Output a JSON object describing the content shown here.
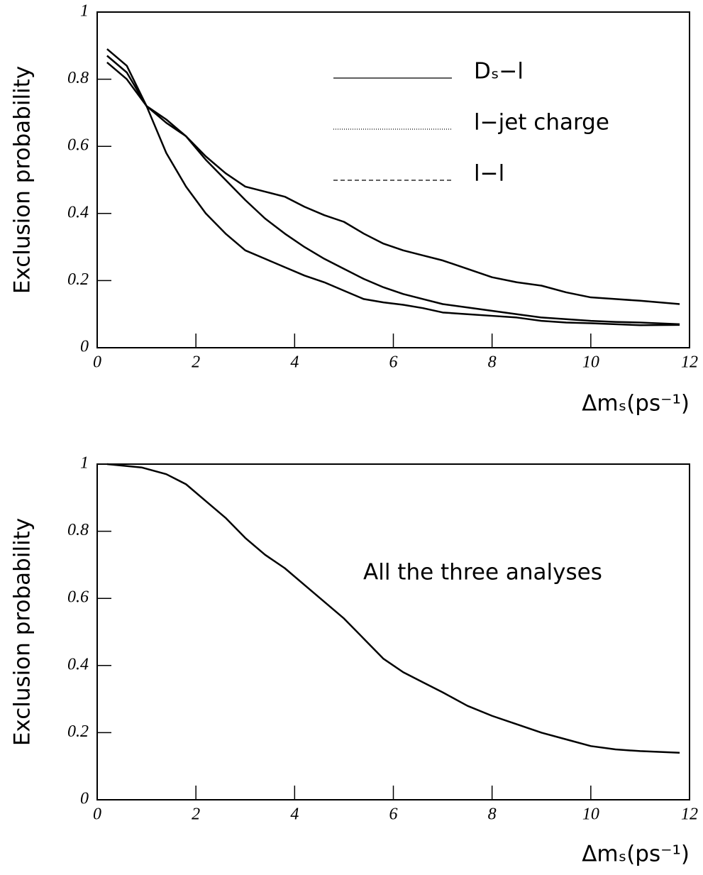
{
  "chart_data": [
    {
      "type": "line",
      "y_label": "Exclusion probability",
      "x_label": "Δmₛ(ps⁻¹)",
      "xlim": [
        0,
        12
      ],
      "ylim": [
        0,
        1
      ],
      "xticks": [
        0,
        2,
        4,
        6,
        8,
        10,
        12
      ],
      "yticks": [
        0,
        0.2,
        0.4,
        0.6,
        0.8,
        1
      ],
      "x": [
        0.2,
        0.6,
        1,
        1.4,
        1.8,
        2.2,
        2.6,
        3,
        3.4,
        3.8,
        4.2,
        4.6,
        5,
        5.4,
        5.8,
        6.2,
        6.6,
        7,
        7.5,
        8,
        8.5,
        9,
        9.5,
        10,
        10.5,
        11,
        11.8
      ],
      "series": [
        {
          "name": "Dₛ−l",
          "color": "#000000",
          "dash": "none",
          "values": [
            0.87,
            0.82,
            0.72,
            0.68,
            0.63,
            0.57,
            0.52,
            0.48,
            0.465,
            0.45,
            0.42,
            0.395,
            0.375,
            0.34,
            0.31,
            0.29,
            0.275,
            0.26,
            0.235,
            0.21,
            0.195,
            0.185,
            0.165,
            0.15,
            0.145,
            0.14,
            0.13
          ]
        },
        {
          "name": "l−jet charge",
          "color": "#000000",
          "dash": "1 2",
          "values": [
            0.85,
            0.8,
            0.72,
            0.67,
            0.63,
            0.56,
            0.5,
            0.44,
            0.385,
            0.34,
            0.3,
            0.265,
            0.235,
            0.205,
            0.18,
            0.16,
            0.145,
            0.13,
            0.12,
            0.11,
            0.1,
            0.09,
            0.085,
            0.08,
            0.077,
            0.075,
            0.07
          ]
        },
        {
          "name": "l−l",
          "color": "#000000",
          "dash": "6 4",
          "values": [
            0.89,
            0.84,
            0.72,
            0.58,
            0.48,
            0.4,
            0.34,
            0.29,
            0.265,
            0.24,
            0.215,
            0.195,
            0.17,
            0.145,
            0.135,
            0.128,
            0.118,
            0.105,
            0.1,
            0.095,
            0.09,
            0.08,
            0.075,
            0.073,
            0.07,
            0.067,
            0.068
          ]
        }
      ]
    },
    {
      "type": "line",
      "y_label": "Exclusion probability",
      "x_label": "Δmₛ(ps⁻¹)",
      "annotation": "All the three analyses",
      "xlim": [
        0,
        12
      ],
      "ylim": [
        0,
        1
      ],
      "xticks": [
        0,
        2,
        4,
        6,
        8,
        10,
        12
      ],
      "yticks": [
        0,
        0.2,
        0.4,
        0.6,
        0.8,
        1
      ],
      "x": [
        0.2,
        0.9,
        1.4,
        1.8,
        2.2,
        2.6,
        3,
        3.4,
        3.8,
        4.2,
        4.6,
        5,
        5.4,
        5.8,
        6.2,
        6.6,
        7,
        7.5,
        8,
        8.5,
        9,
        9.5,
        10,
        10.5,
        11,
        11.8
      ],
      "series": [
        {
          "color": "#000000",
          "values": [
            1,
            0.99,
            0.97,
            0.94,
            0.89,
            0.84,
            0.78,
            0.73,
            0.69,
            0.64,
            0.59,
            0.54,
            0.48,
            0.42,
            0.38,
            0.35,
            0.32,
            0.28,
            0.25,
            0.225,
            0.2,
            0.18,
            0.16,
            0.15,
            0.145,
            0.14
          ]
        }
      ]
    }
  ]
}
